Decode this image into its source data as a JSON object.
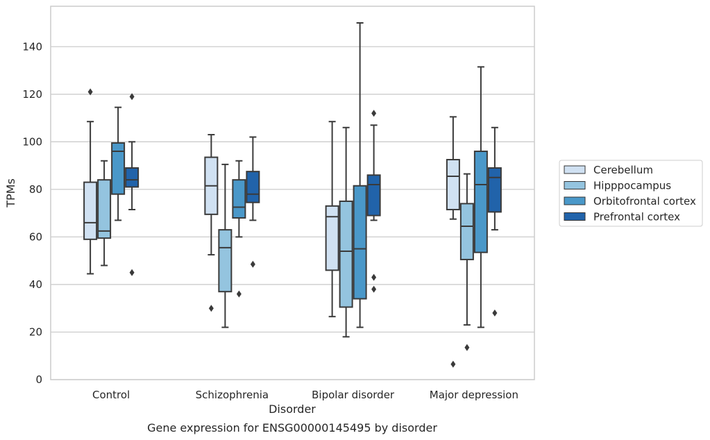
{
  "chart_data": {
    "type": "boxplot",
    "caption": "Gene expression for ENSG00000145495 by disorder",
    "xlabel": "Disorder",
    "ylabel": "TPMs",
    "ylim": [
      0,
      157
    ],
    "yticks": [
      0,
      20,
      40,
      60,
      80,
      100,
      120,
      140
    ],
    "grid": true,
    "legend_position": "right",
    "categories": [
      "Control",
      "Schizophrenia",
      "Bipolar disorder",
      "Major depression"
    ],
    "series": [
      {
        "name": "Cerebellum",
        "color": "#d0e1f2",
        "boxes": [
          {
            "whislo": 44.5,
            "q1": 59,
            "med": 66,
            "q3": 83,
            "whishi": 108.5,
            "fliers": [
              121
            ]
          },
          {
            "whislo": 52.5,
            "q1": 69.5,
            "med": 81.5,
            "q3": 93.5,
            "whishi": 103,
            "fliers": [
              30
            ]
          },
          {
            "whislo": 26.5,
            "q1": 46,
            "med": 68.5,
            "q3": 73,
            "whishi": 108.5,
            "fliers": []
          },
          {
            "whislo": 67.5,
            "q1": 71.5,
            "med": 85.5,
            "q3": 92.5,
            "whishi": 110.5,
            "fliers": [
              6.5
            ]
          }
        ]
      },
      {
        "name": "Hipppocampus",
        "color": "#94c4df",
        "boxes": [
          {
            "whislo": 48,
            "q1": 59.5,
            "med": 62.5,
            "q3": 84,
            "whishi": 92,
            "fliers": []
          },
          {
            "whislo": 22,
            "q1": 37,
            "med": 55.5,
            "q3": 63,
            "whishi": 90.5,
            "fliers": []
          },
          {
            "whislo": 18,
            "q1": 30.5,
            "med": 54,
            "q3": 75,
            "whishi": 106,
            "fliers": []
          },
          {
            "whislo": 23,
            "q1": 50.5,
            "med": 64.5,
            "q3": 74,
            "whishi": 86.5,
            "fliers": [
              13.5
            ]
          }
        ]
      },
      {
        "name": "Orbitofrontal cortex",
        "color": "#4a98c9",
        "boxes": [
          {
            "whislo": 67,
            "q1": 78,
            "med": 96,
            "q3": 99.5,
            "whishi": 114.5,
            "fliers": []
          },
          {
            "whislo": 60,
            "q1": 68,
            "med": 72.5,
            "q3": 84,
            "whishi": 92,
            "fliers": [
              36
            ]
          },
          {
            "whislo": 22,
            "q1": 34,
            "med": 55,
            "q3": 81.5,
            "whishi": 150,
            "fliers": []
          },
          {
            "whislo": 22,
            "q1": 53.5,
            "med": 82,
            "q3": 96,
            "whishi": 131.5,
            "fliers": []
          }
        ]
      },
      {
        "name": "Prefrontal cortex",
        "color": "#2163aa",
        "boxes": [
          {
            "whislo": 71.5,
            "q1": 81,
            "med": 84,
            "q3": 89,
            "whishi": 100,
            "fliers": [
              45,
              119
            ]
          },
          {
            "whislo": 67,
            "q1": 74.5,
            "med": 78,
            "q3": 87.5,
            "whishi": 102,
            "fliers": [
              48.5
            ]
          },
          {
            "whislo": 67,
            "q1": 69,
            "med": 82,
            "q3": 86,
            "whishi": 107,
            "fliers": [
              38,
              43,
              112
            ]
          },
          {
            "whislo": 63,
            "q1": 70.5,
            "med": 85,
            "q3": 89,
            "whishi": 106,
            "fliers": [
              28
            ]
          }
        ]
      }
    ]
  }
}
